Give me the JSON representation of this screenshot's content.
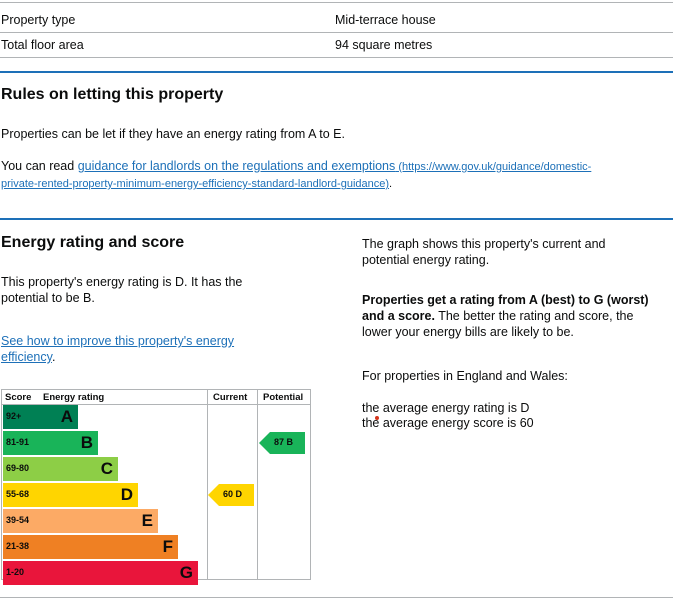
{
  "summary_table": {
    "rows": [
      {
        "label": "Property type",
        "value": "Mid-terrace house"
      },
      {
        "label": "Total floor area",
        "value": "94 square metres"
      }
    ]
  },
  "rules": {
    "heading": "Rules on letting this property",
    "para1": "Properties can be let if they have an energy rating from A to E.",
    "para2_prefix": "You can read ",
    "para2_link_text": "guidance for landlords on the regulations and exemptions",
    "para2_link_url_line1": " (https://www.gov.uk/guidance/domestic-",
    "para2_link_url_line2": "private-rented-property-minimum-energy-efficiency-standard-landlord-guidance)",
    "para2_suffix": "."
  },
  "energy": {
    "heading": "Energy rating and score",
    "rating_line1": "This property's energy rating is D. It has the",
    "rating_line2": "potential to be B.",
    "improve_link_line1": "See how to improve this property's energy",
    "improve_link_line2": "efficiency",
    "improve_suffix": ".",
    "right": {
      "intro_line1": "The graph shows this property's current and",
      "intro_line2": "potential energy rating.",
      "bold_line1": "Properties get a rating from A (best) to G (worst)",
      "bold_line2": "and a score.",
      "rest_line2": " The better the rating and score, the",
      "rest_line3": "lower your energy bills are likely to be.",
      "england_wales": "For properties in England and Wales:",
      "avg_rating": "the average energy rating is D",
      "avg_score": "the average energy score is 60"
    }
  },
  "chart_data": {
    "type": "table",
    "headers": {
      "score": "Score",
      "rating": "Energy rating",
      "current": "Current",
      "potential": "Potential"
    },
    "bands": [
      {
        "range": "92+",
        "letter": "A",
        "color": "#008054"
      },
      {
        "range": "81-91",
        "letter": "B",
        "color": "#19b459"
      },
      {
        "range": "69-80",
        "letter": "C",
        "color": "#8dce46"
      },
      {
        "range": "55-68",
        "letter": "D",
        "color": "#ffd500"
      },
      {
        "range": "39-54",
        "letter": "E",
        "color": "#fcaa65"
      },
      {
        "range": "21-38",
        "letter": "F",
        "color": "#ef8023"
      },
      {
        "range": "1-20",
        "letter": "G",
        "color": "#e9153b"
      }
    ],
    "current": {
      "label": "60 D",
      "score": 60,
      "band": "D",
      "color": "#ffd500"
    },
    "potential": {
      "label": "87 B",
      "score": 87,
      "band": "B",
      "color": "#19b459"
    }
  }
}
